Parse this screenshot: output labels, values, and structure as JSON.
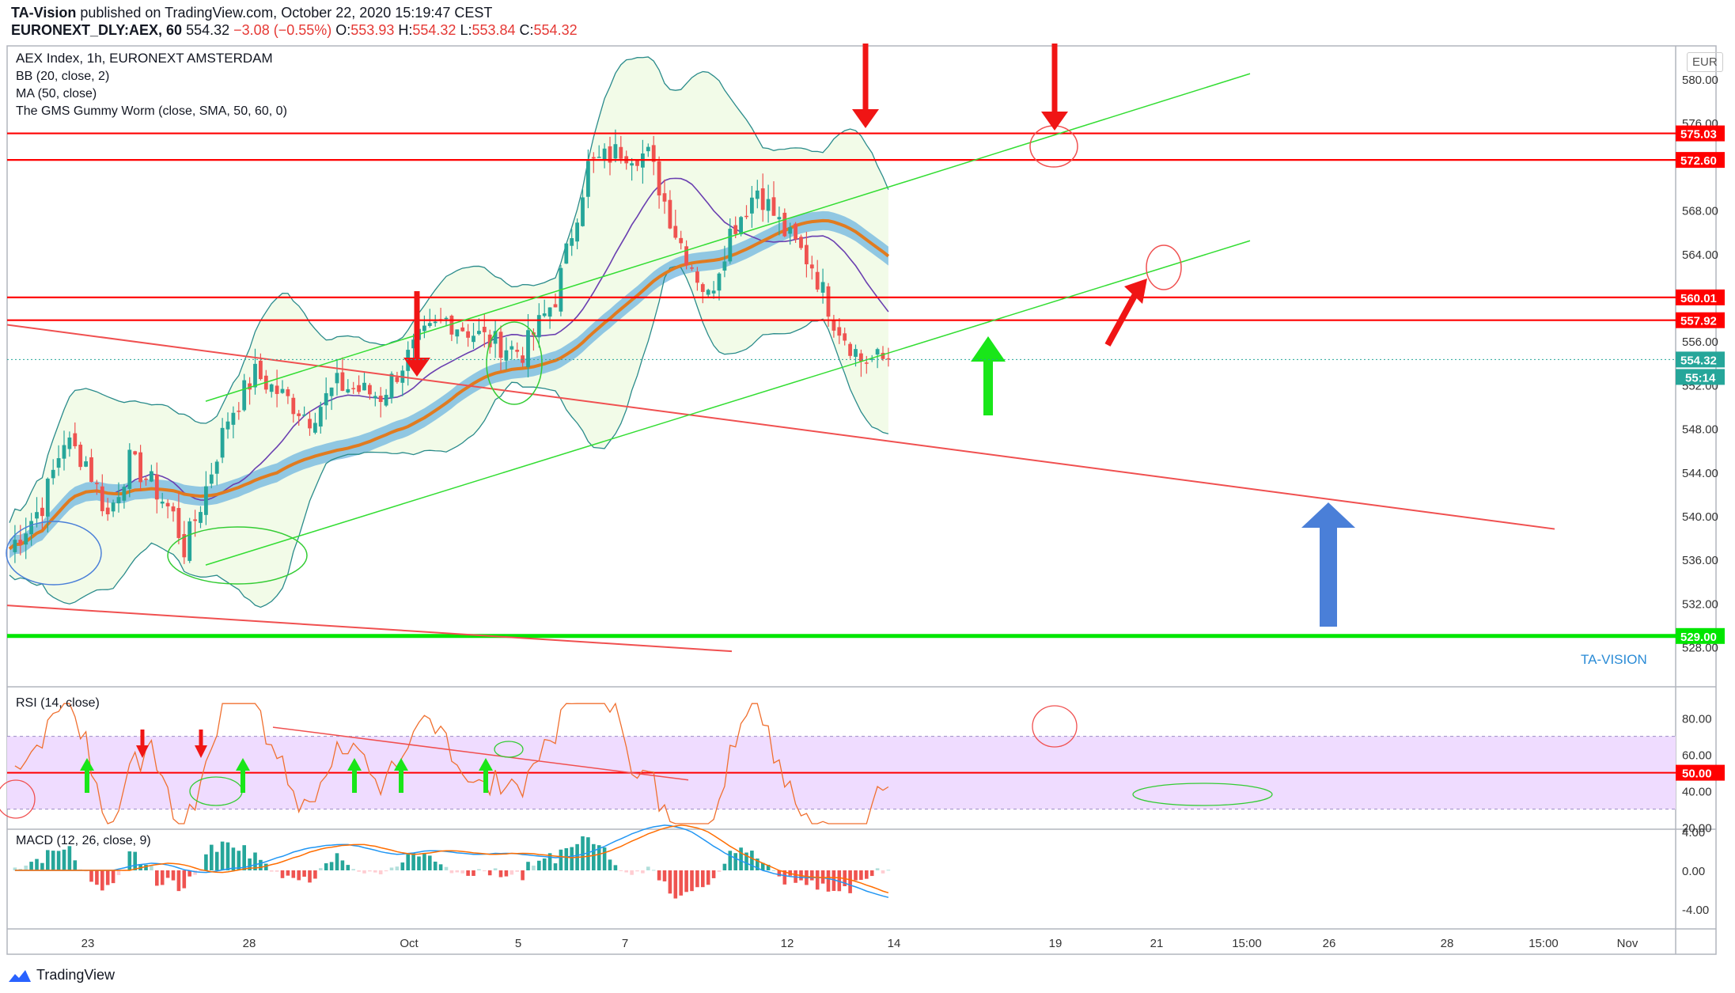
{
  "header": {
    "publisher": "TA-Vision",
    "published_text": "published on TradingView.com, October 22, 2020 15:19:47 CEST",
    "symbol": "EURONEXT_DLY:AEX, 60",
    "last": "554.32",
    "change": "−3.08 (−0.55%)",
    "o_label": "O:",
    "o": "553.93",
    "h_label": "H:",
    "h": "554.32",
    "l_label": "L:",
    "l": "553.84",
    "c_label": "C:",
    "c": "554.32"
  },
  "legend": {
    "title": "AEX Index, 1h, EURONEXT AMSTERDAM",
    "bb": "BB (20, close, 2)",
    "ma": "MA (50, close)",
    "worm": "The GMS Gummy Worm (close, SMA, 50, 60, 0)",
    "rsi": "RSI (14, close)",
    "macd": "MACD (12, 26, close, 9)",
    "watermark": "TA-VISION",
    "currency": "EUR"
  },
  "branding": {
    "logo_text": "TradingView"
  },
  "colors": {
    "up": "#26a69a",
    "down": "#ef5350",
    "red_line": "#ff0000",
    "green_line": "#00e600",
    "blue_arrow": "#4a7fd8",
    "ma_orange": "#e07b20",
    "worm_pink": "#e27be8",
    "worm_blue": "#6fb5e0",
    "rsi_band": "#efdcff",
    "bb_line": "#2a8b8b",
    "bb_fill": "#f2fbe8"
  },
  "chart_data": {
    "type": "candlestick",
    "xaxis_ticks": [
      "23",
      "28",
      "Oct",
      "5",
      "7",
      "12",
      "14",
      "19",
      "21",
      "15:00",
      "26",
      "28",
      "15:00",
      "Nov"
    ],
    "y_ticks": [
      "580.00",
      "576.00",
      "568.00",
      "564.00",
      "556.00",
      "552.00",
      "548.00",
      "544.00",
      "540.00",
      "536.00",
      "532.00",
      "528.00"
    ],
    "ylim": [
      527,
      582
    ],
    "price_labels": [
      {
        "value": 575.03,
        "text": "575.03",
        "color": "#ff0000"
      },
      {
        "value": 572.6,
        "text": "572.60",
        "color": "#ff0000"
      },
      {
        "value": 560.01,
        "text": "560.01",
        "color": "#ff0000"
      },
      {
        "value": 557.92,
        "text": "557.92",
        "color": "#ff0000"
      },
      {
        "value": 554.32,
        "text": "554.32",
        "color": "#26a69a"
      },
      {
        "value": 529.0,
        "text": "529.00",
        "color": "#00e600"
      }
    ],
    "countdown": "55:14",
    "last_close": 554.32,
    "rsi": {
      "ylim": [
        12,
        92
      ],
      "ticks": [
        "80.00",
        "60.00",
        "40.00",
        "20.00"
      ],
      "level_label": "50.00",
      "level": 50,
      "band": [
        30,
        70
      ]
    },
    "macd": {
      "ylim": [
        -5.5,
        4.6
      ],
      "ticks": [
        "4.00",
        "0.00",
        "-4.00"
      ]
    }
  }
}
